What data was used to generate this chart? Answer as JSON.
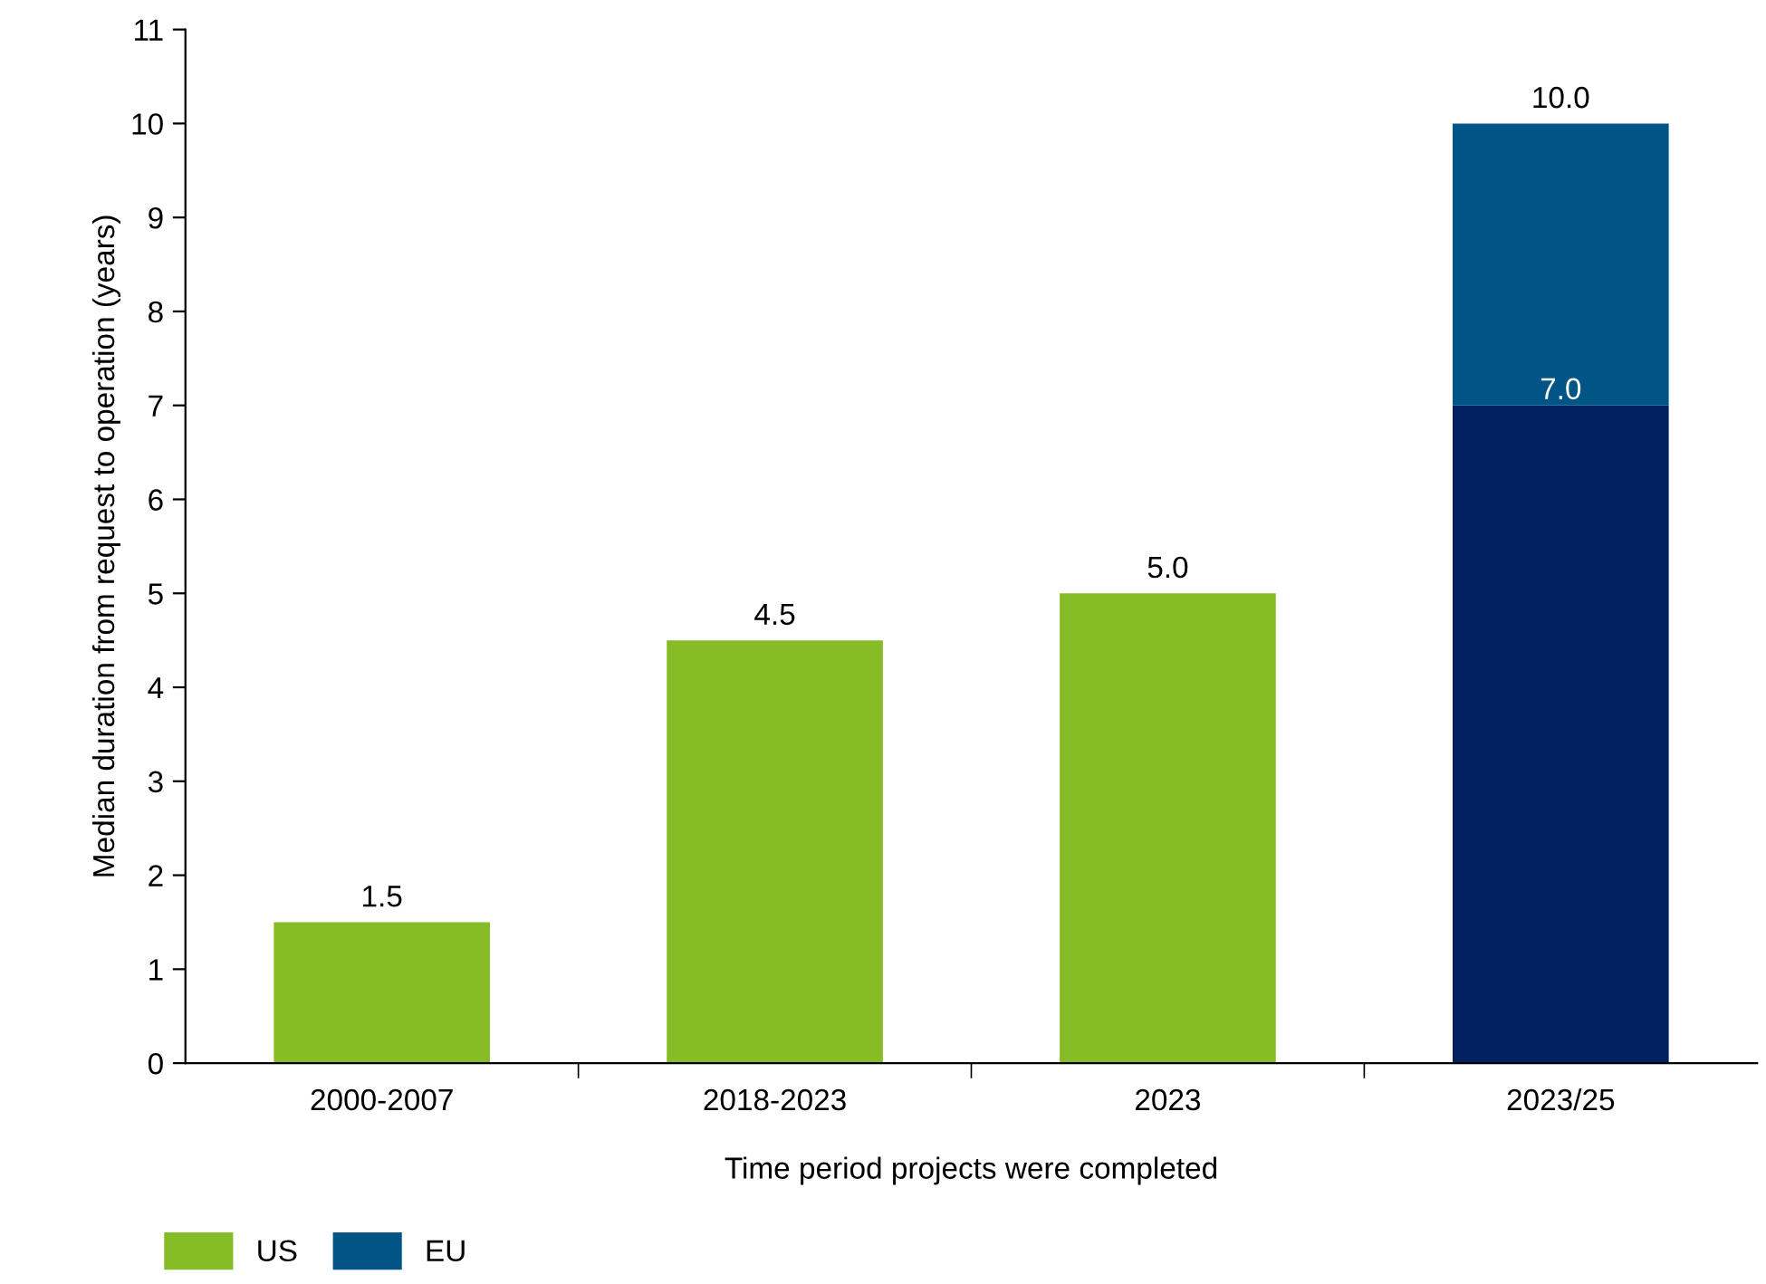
{
  "chart_data": {
    "type": "bar",
    "stacked": true,
    "xlabel": "Time period projects were completed",
    "ylabel": "Median duration from request to operation (years)",
    "categories": [
      "2000-2007",
      "2018-2023",
      "2023",
      "2023/25"
    ],
    "series": [
      {
        "name": "US",
        "color": "#86bc25",
        "values": [
          1.5,
          4.5,
          5.0,
          null
        ]
      },
      {
        "color": "#002060",
        "values": [
          null,
          null,
          null,
          7.0
        ],
        "value_labels": [
          null,
          null,
          null,
          "7.0"
        ]
      },
      {
        "name": "EU",
        "color": "#005587",
        "values": [
          null,
          null,
          null,
          3.0
        ]
      }
    ],
    "totals": [
      "1.5",
      "4.5",
      "5.0",
      "10.0"
    ],
    "ylim": [
      0,
      11
    ],
    "yticks": [
      0,
      1,
      2,
      3,
      4,
      5,
      6,
      7,
      8,
      9,
      10,
      11
    ],
    "grid": false,
    "legend": "bottom left"
  }
}
